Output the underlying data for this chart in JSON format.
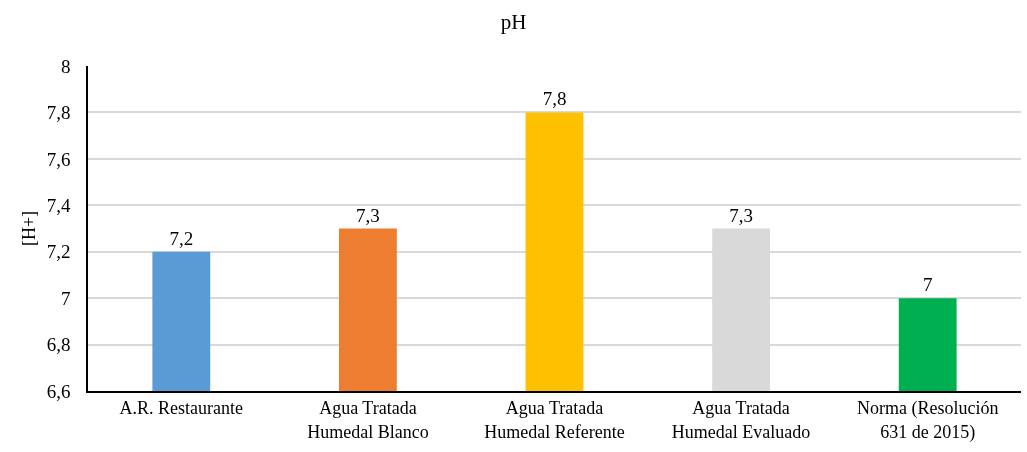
{
  "chart_data": {
    "type": "bar",
    "title": "pH",
    "ylabel": "[H+]",
    "categories": [
      "A.R. Restaurante",
      "Agua Tratada Humedal Blanco",
      "Agua Tratada Humedal Referente",
      "Agua Tratada Humedal Evaluado",
      "Norma (Resolución 631 de 2015)"
    ],
    "values": [
      7.2,
      7.3,
      7.8,
      7.3,
      7
    ],
    "value_labels": [
      "7,2",
      "7,3",
      "7,8",
      "7,3",
      "7"
    ],
    "colors": [
      "#5b9bd5",
      "#ed7d31",
      "#ffc000",
      "#d9d9d9",
      "#00b050"
    ],
    "ylim": [
      6.6,
      8
    ],
    "yticks": [
      {
        "value": 6.6,
        "label": "6,6"
      },
      {
        "value": 6.8,
        "label": "6,8"
      },
      7,
      {
        "value": 7.2,
        "label": "7,2"
      },
      {
        "value": 7.4,
        "label": "7,4"
      },
      {
        "value": 7.6,
        "label": "7,6"
      },
      {
        "value": 7.8,
        "label": "7,8"
      },
      8
    ],
    "grid": "y"
  }
}
